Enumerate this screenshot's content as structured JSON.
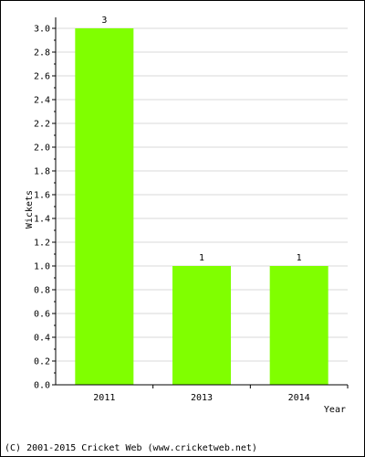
{
  "chart_data": {
    "type": "bar",
    "categories": [
      "2011",
      "2013",
      "2014"
    ],
    "values": [
      3,
      1,
      1
    ],
    "data_labels": [
      "3",
      "1",
      "1"
    ],
    "xlabel": "Year",
    "ylabel": "Wickets",
    "ylim": [
      0,
      3.0
    ],
    "yticks": [
      "0.0",
      "0.2",
      "0.4",
      "0.6",
      "0.8",
      "1.0",
      "1.2",
      "1.4",
      "1.6",
      "1.8",
      "2.0",
      "2.2",
      "2.4",
      "2.6",
      "2.8",
      "3.0"
    ],
    "grid": true,
    "bar_color": "#80ff00",
    "grid_color": "#d8d8d8"
  },
  "footer": {
    "copyright": "(C) 2001-2015 Cricket Web (www.cricketweb.net)"
  }
}
